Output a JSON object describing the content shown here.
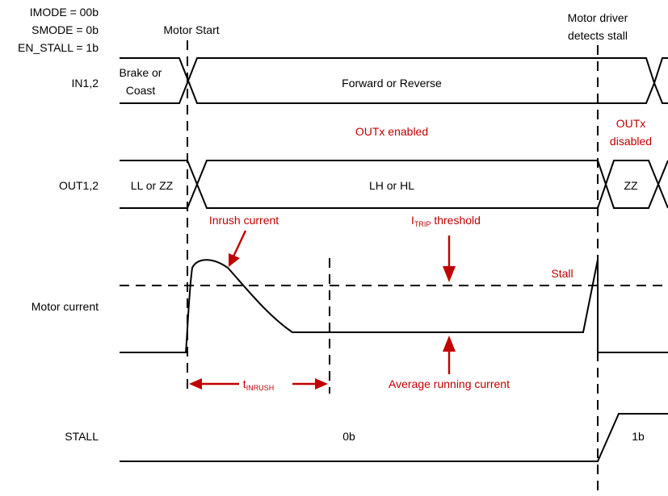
{
  "config": {
    "imode": "IMODE = 00b",
    "smode": "SMODE = 0b",
    "en_stall": "EN_STALL = 1b"
  },
  "events": {
    "motor_start": "Motor Start",
    "stall_detect_line1": "Motor driver",
    "stall_detect_line2": "detects stall"
  },
  "signals": {
    "in12": {
      "label": "IN1,2",
      "state_before_line1": "Brake or",
      "state_before_line2": "Coast",
      "state_running": "Forward or Reverse"
    },
    "out12": {
      "label": "OUT1,2",
      "state_before": "LL or ZZ",
      "state_running": "LH or HL",
      "state_after": "ZZ"
    },
    "motor_current": {
      "label": "Motor current"
    },
    "stall": {
      "label": "STALL",
      "value_before": "0b",
      "value_after": "1b"
    }
  },
  "annotations": {
    "outx_enabled": "OUTx enabled",
    "outx_disabled_line1": "OUTx",
    "outx_disabled_line2": "disabled",
    "inrush_current": "Inrush current",
    "itrip_prefix": "I",
    "itrip_subscript": "TRIP",
    "itrip_suffix": " threshold",
    "stall": "Stall",
    "t_inrush_prefix": "t",
    "t_inrush_subscript": "INRUSH",
    "average_running_current": "Average running current"
  },
  "colors": {
    "annotation": "#c00000",
    "trace": "#000000"
  }
}
